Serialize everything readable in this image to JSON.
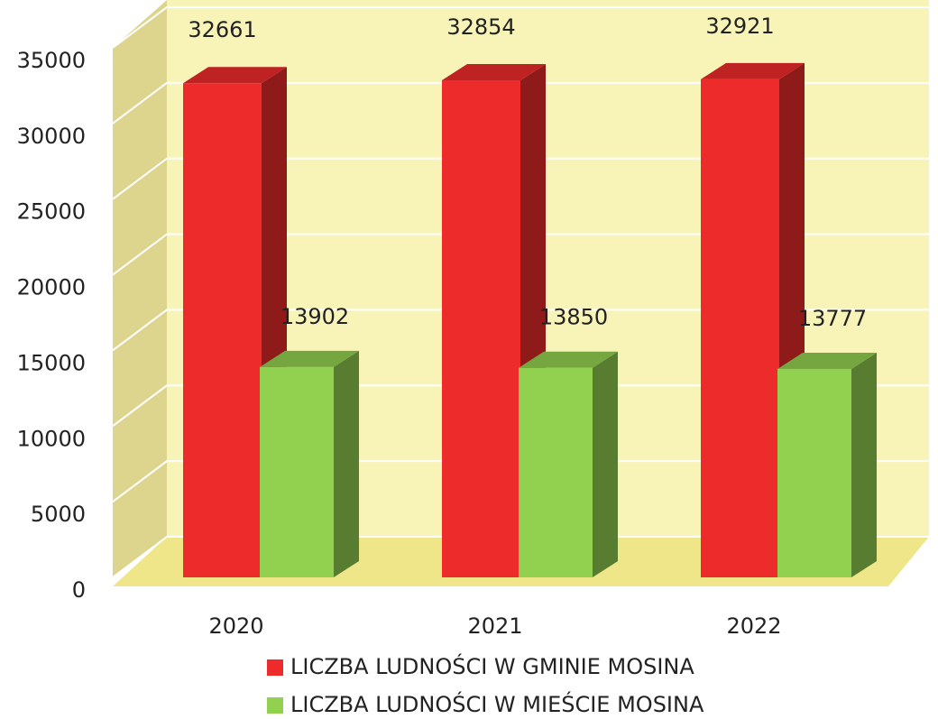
{
  "chart_data": {
    "type": "bar3d",
    "categories": [
      "2020",
      "2021",
      "2022"
    ],
    "series": [
      {
        "name": "LICZBA LUDNOŚCI W GMINIE MOSINA",
        "color": "#ee2b2b",
        "values": [
          32661,
          32854,
          32921
        ]
      },
      {
        "name": "LICZBA LUDNOŚCI W MIEŚCIE MOSINA",
        "color": "#92d050",
        "values": [
          13902,
          13850,
          13777
        ]
      }
    ],
    "ylim": [
      0,
      35000
    ],
    "yticks": [
      0,
      5000,
      10000,
      15000,
      20000,
      25000,
      30000,
      35000
    ],
    "grid": true,
    "legend": "bottom"
  }
}
